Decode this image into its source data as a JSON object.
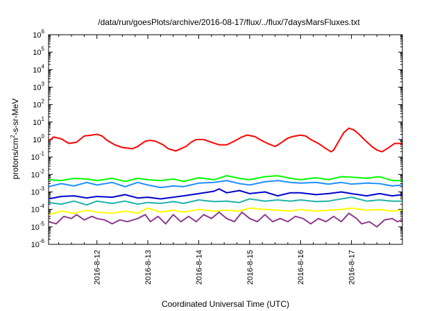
{
  "chart_data": {
    "type": "line",
    "title": "/data/run/goesPlots/archive/2016-08-17/flux/../flux/7daysMarsFluxes.txt",
    "xlabel": "Coordinated Universal Time (UTC)",
    "ylabel": "protons/cm²-s-sr-MeV",
    "yscale": "log",
    "ylim": [
      1e-06,
      1000000.0
    ],
    "y_ticks": [
      "10^-6",
      "10^-5",
      "10^-4",
      "10^-3",
      "10^-2",
      "10^-1",
      "10^0",
      "10^1",
      "10^2",
      "10^3",
      "10^4",
      "10^5",
      "10^6"
    ],
    "x_unit": "day of August 2016 (UTC)",
    "xlim": [
      11.05,
      18.0
    ],
    "x_ticks": [
      {
        "value": 12,
        "label": "2016-8-12"
      },
      {
        "value": 13,
        "label": "2016-8-13"
      },
      {
        "value": 14,
        "label": "2016-8-14"
      },
      {
        "value": 15,
        "label": "2016-8-15"
      },
      {
        "value": 16,
        "label": "2016-8-16"
      },
      {
        "value": 17,
        "label": "2016-8-17"
      }
    ],
    "grid": false,
    "legend": "none",
    "series": [
      {
        "color": "#ff0000",
        "points": [
          [
            11.05,
            0.8
          ],
          [
            11.15,
            1.4
          ],
          [
            11.3,
            1.1
          ],
          [
            11.45,
            0.6
          ],
          [
            11.6,
            0.7
          ],
          [
            11.75,
            1.6
          ],
          [
            11.9,
            1.8
          ],
          [
            12.0,
            2.0
          ],
          [
            12.1,
            1.6
          ],
          [
            12.2,
            0.9
          ],
          [
            12.35,
            0.5
          ],
          [
            12.5,
            0.35
          ],
          [
            12.7,
            0.3
          ],
          [
            12.8,
            0.4
          ],
          [
            12.95,
            0.8
          ],
          [
            13.05,
            0.9
          ],
          [
            13.15,
            0.8
          ],
          [
            13.3,
            0.5
          ],
          [
            13.4,
            0.3
          ],
          [
            13.55,
            0.22
          ],
          [
            13.65,
            0.3
          ],
          [
            13.75,
            0.4
          ],
          [
            13.85,
            0.7
          ],
          [
            13.95,
            1.0
          ],
          [
            14.1,
            1.0
          ],
          [
            14.25,
            0.7
          ],
          [
            14.4,
            0.5
          ],
          [
            14.55,
            0.5
          ],
          [
            14.7,
            0.8
          ],
          [
            14.85,
            1.4
          ],
          [
            14.95,
            1.8
          ],
          [
            15.1,
            1.5
          ],
          [
            15.2,
            1.0
          ],
          [
            15.35,
            0.6
          ],
          [
            15.5,
            0.4
          ],
          [
            15.6,
            0.6
          ],
          [
            15.75,
            1.2
          ],
          [
            15.85,
            1.5
          ],
          [
            16.0,
            1.8
          ],
          [
            16.1,
            1.6
          ],
          [
            16.2,
            1.0
          ],
          [
            16.35,
            0.6
          ],
          [
            16.5,
            0.3
          ],
          [
            16.6,
            0.2
          ],
          [
            16.65,
            0.25
          ],
          [
            16.75,
            0.8
          ],
          [
            16.85,
            2.5
          ],
          [
            16.95,
            4.5
          ],
          [
            17.05,
            3.5
          ],
          [
            17.15,
            2.0
          ],
          [
            17.25,
            1.0
          ],
          [
            17.4,
            0.4
          ],
          [
            17.5,
            0.25
          ],
          [
            17.6,
            0.2
          ],
          [
            17.7,
            0.3
          ],
          [
            17.85,
            0.6
          ],
          [
            17.95,
            0.6
          ],
          [
            18.0,
            0.5
          ]
        ]
      },
      {
        "color": "#00ff00",
        "points": [
          [
            11.05,
            0.005
          ],
          [
            11.3,
            0.0045
          ],
          [
            11.55,
            0.006
          ],
          [
            11.8,
            0.0055
          ],
          [
            12.0,
            0.0045
          ],
          [
            12.3,
            0.006
          ],
          [
            12.55,
            0.004
          ],
          [
            12.8,
            0.006
          ],
          [
            13.0,
            0.005
          ],
          [
            13.25,
            0.0045
          ],
          [
            13.5,
            0.0055
          ],
          [
            13.7,
            0.004
          ],
          [
            14.0,
            0.0065
          ],
          [
            14.3,
            0.005
          ],
          [
            14.55,
            0.0085
          ],
          [
            14.8,
            0.006
          ],
          [
            15.0,
            0.005
          ],
          [
            15.3,
            0.0075
          ],
          [
            15.55,
            0.0085
          ],
          [
            15.8,
            0.006
          ],
          [
            16.0,
            0.005
          ],
          [
            16.3,
            0.0065
          ],
          [
            16.55,
            0.005
          ],
          [
            16.8,
            0.0075
          ],
          [
            17.0,
            0.007
          ],
          [
            17.3,
            0.006
          ],
          [
            17.55,
            0.0075
          ],
          [
            17.8,
            0.0045
          ],
          [
            18.0,
            0.0045
          ]
        ]
      },
      {
        "color": "#1e90ff",
        "points": [
          [
            11.05,
            0.002
          ],
          [
            11.3,
            0.003
          ],
          [
            11.55,
            0.0022
          ],
          [
            11.8,
            0.0035
          ],
          [
            12.0,
            0.0025
          ],
          [
            12.3,
            0.0035
          ],
          [
            12.55,
            0.002
          ],
          [
            12.8,
            0.0035
          ],
          [
            13.0,
            0.0025
          ],
          [
            13.25,
            0.0018
          ],
          [
            13.5,
            0.0022
          ],
          [
            13.7,
            0.002
          ],
          [
            14.0,
            0.0032
          ],
          [
            14.3,
            0.0035
          ],
          [
            14.55,
            0.0045
          ],
          [
            14.8,
            0.003
          ],
          [
            15.0,
            0.0025
          ],
          [
            15.3,
            0.0038
          ],
          [
            15.55,
            0.0045
          ],
          [
            15.8,
            0.0035
          ],
          [
            16.0,
            0.0032
          ],
          [
            16.3,
            0.0035
          ],
          [
            16.55,
            0.0028
          ],
          [
            16.8,
            0.0035
          ],
          [
            17.0,
            0.0028
          ],
          [
            17.3,
            0.0032
          ],
          [
            17.55,
            0.003
          ],
          [
            17.8,
            0.0022
          ],
          [
            18.0,
            0.0025
          ]
        ]
      },
      {
        "color": "#0000cd",
        "points": [
          [
            11.05,
            0.0004
          ],
          [
            11.3,
            0.00055
          ],
          [
            11.55,
            0.0006
          ],
          [
            11.8,
            0.00045
          ],
          [
            12.0,
            0.00055
          ],
          [
            12.3,
            0.0005
          ],
          [
            12.55,
            0.0007
          ],
          [
            12.8,
            0.00045
          ],
          [
            13.0,
            0.0005
          ],
          [
            13.25,
            0.0004
          ],
          [
            13.5,
            0.0005
          ],
          [
            13.7,
            0.0006
          ],
          [
            14.0,
            0.0008
          ],
          [
            14.3,
            0.0011
          ],
          [
            14.4,
            0.0015
          ],
          [
            14.55,
            0.0009
          ],
          [
            14.8,
            0.0012
          ],
          [
            15.0,
            0.0008
          ],
          [
            15.3,
            0.001
          ],
          [
            15.55,
            0.0006
          ],
          [
            15.8,
            0.0009
          ],
          [
            16.0,
            0.0009
          ],
          [
            16.3,
            0.0007
          ],
          [
            16.55,
            0.0008
          ],
          [
            16.8,
            0.001
          ],
          [
            17.0,
            0.0008
          ],
          [
            17.3,
            0.0006
          ],
          [
            17.55,
            0.0008
          ],
          [
            17.8,
            0.0006
          ],
          [
            18.0,
            0.0007
          ]
        ]
      },
      {
        "color": "#20b2aa",
        "points": [
          [
            11.05,
            0.00025
          ],
          [
            11.3,
            0.0002
          ],
          [
            11.55,
            0.0003
          ],
          [
            11.8,
            0.00018
          ],
          [
            12.0,
            0.0003
          ],
          [
            12.3,
            0.00022
          ],
          [
            12.55,
            0.0003
          ],
          [
            12.8,
            0.0002
          ],
          [
            13.0,
            0.00025
          ],
          [
            13.25,
            0.00022
          ],
          [
            13.5,
            0.00028
          ],
          [
            13.7,
            0.00022
          ],
          [
            14.0,
            0.00035
          ],
          [
            14.3,
            0.00028
          ],
          [
            14.55,
            0.0003
          ],
          [
            14.8,
            0.00025
          ],
          [
            15.0,
            0.0004
          ],
          [
            15.3,
            0.0003
          ],
          [
            15.55,
            0.00035
          ],
          [
            15.8,
            0.0003
          ],
          [
            16.0,
            0.00035
          ],
          [
            16.3,
            0.00028
          ],
          [
            16.55,
            0.0003
          ],
          [
            16.8,
            0.0004
          ],
          [
            17.0,
            0.0005
          ],
          [
            17.3,
            0.0003
          ],
          [
            17.55,
            0.00035
          ],
          [
            17.8,
            0.0003
          ],
          [
            18.0,
            0.0003
          ]
        ]
      },
      {
        "color": "#ffff00",
        "points": [
          [
            11.05,
            5e-05
          ],
          [
            11.3,
            8e-05
          ],
          [
            11.55,
            6e-05
          ],
          [
            11.8,
            9e-05
          ],
          [
            12.0,
            7e-05
          ],
          [
            12.3,
            6e-05
          ],
          [
            12.55,
            8e-05
          ],
          [
            12.8,
            6e-05
          ],
          [
            13.0,
            0.00012
          ],
          [
            13.25,
            7e-05
          ],
          [
            13.5,
            9e-05
          ],
          [
            13.7,
            7e-05
          ],
          [
            14.0,
            0.0001
          ],
          [
            14.3,
            8e-05
          ],
          [
            14.55,
            9e-05
          ],
          [
            14.8,
            8e-05
          ],
          [
            15.0,
            0.00012
          ],
          [
            15.3,
            0.0001
          ],
          [
            15.55,
            9e-05
          ],
          [
            15.8,
            8e-05
          ],
          [
            16.0,
            0.0001
          ],
          [
            16.3,
            8e-05
          ],
          [
            16.55,
            9e-05
          ],
          [
            16.8,
            0.0001
          ],
          [
            17.0,
            0.00012
          ],
          [
            17.3,
            9e-05
          ],
          [
            17.55,
            0.0001
          ],
          [
            17.8,
            8e-05
          ],
          [
            18.0,
            9e-05
          ]
        ]
      },
      {
        "color": "#8b3a8b",
        "points": [
          [
            11.05,
            2e-05
          ],
          [
            11.2,
            1.5e-05
          ],
          [
            11.35,
            4e-05
          ],
          [
            11.5,
            3e-05
          ],
          [
            11.6,
            5e-05
          ],
          [
            11.75,
            2.5e-05
          ],
          [
            11.9,
            4e-05
          ],
          [
            12.0,
            3e-05
          ],
          [
            12.15,
            2.5e-05
          ],
          [
            12.3,
            1.5e-05
          ],
          [
            12.45,
            2.5e-05
          ],
          [
            12.6,
            2e-05
          ],
          [
            12.8,
            3e-05
          ],
          [
            12.95,
            5e-05
          ],
          [
            13.05,
            2e-05
          ],
          [
            13.2,
            4e-05
          ],
          [
            13.35,
            1.5e-05
          ],
          [
            13.5,
            5e-05
          ],
          [
            13.65,
            2e-05
          ],
          [
            13.8,
            4e-05
          ],
          [
            13.95,
            2e-05
          ],
          [
            14.1,
            5e-05
          ],
          [
            14.25,
            3e-05
          ],
          [
            14.4,
            7e-05
          ],
          [
            14.55,
            3e-05
          ],
          [
            14.7,
            2e-05
          ],
          [
            14.85,
            7e-05
          ],
          [
            15.0,
            3e-05
          ],
          [
            15.15,
            2e-05
          ],
          [
            15.3,
            5e-05
          ],
          [
            15.45,
            2e-05
          ],
          [
            15.6,
            3e-05
          ],
          [
            15.75,
            2e-05
          ],
          [
            15.9,
            4e-05
          ],
          [
            16.05,
            3e-05
          ],
          [
            16.2,
            1.5e-05
          ],
          [
            16.35,
            3e-05
          ],
          [
            16.5,
            2e-05
          ],
          [
            16.65,
            4e-05
          ],
          [
            16.8,
            2e-05
          ],
          [
            16.95,
            6e-05
          ],
          [
            17.1,
            3e-05
          ],
          [
            17.2,
            1.5e-05
          ],
          [
            17.35,
            2e-05
          ],
          [
            17.5,
            1e-05
          ],
          [
            17.65,
            2.5e-05
          ],
          [
            17.8,
            3e-05
          ],
          [
            17.9,
            2e-05
          ],
          [
            18.0,
            2.5e-05
          ]
        ]
      }
    ]
  }
}
